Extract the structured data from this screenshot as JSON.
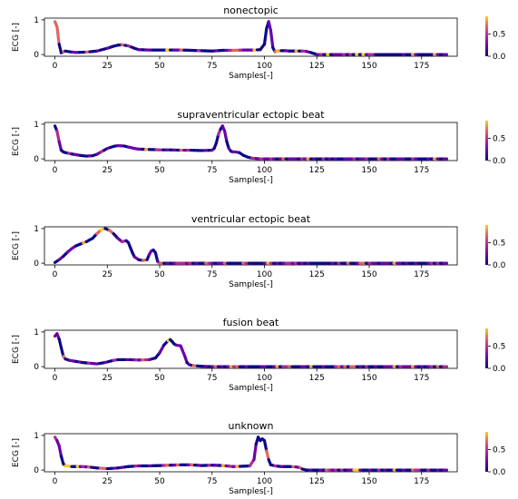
{
  "chart_data": [
    {
      "type": "line",
      "title": "nonectopic",
      "xlabel": "Samples[-]",
      "ylabel": "ECG [-]",
      "xlim": [
        -5,
        192
      ],
      "ylim": [
        -0.05,
        1.05
      ],
      "xticks": [
        0,
        25,
        50,
        75,
        100,
        125,
        150,
        175
      ],
      "yticks": [
        0,
        1
      ],
      "colorbar": {
        "ticks": [
          0.0,
          0.5
        ],
        "tick_labels": [
          "0.0",
          "0.5"
        ],
        "range": [
          0,
          0.9
        ],
        "colormap": "plasma"
      },
      "series": [
        {
          "x": [
            0,
            1,
            2,
            3,
            4,
            5,
            7,
            10,
            15,
            20,
            25,
            28,
            30,
            32,
            35,
            38,
            40,
            45,
            50,
            55,
            60,
            65,
            70,
            75,
            80,
            85,
            90,
            95,
            98,
            100,
            101,
            102,
            103,
            104,
            105,
            106,
            108,
            110,
            112,
            115,
            118,
            120,
            122,
            124,
            125,
            130,
            150,
            175,
            187
          ],
          "y": [
            0.95,
            0.8,
            0.3,
            0.05,
            0.08,
            0.1,
            0.08,
            0.06,
            0.07,
            0.1,
            0.18,
            0.24,
            0.27,
            0.28,
            0.25,
            0.18,
            0.14,
            0.13,
            0.13,
            0.13,
            0.13,
            0.12,
            0.11,
            0.1,
            0.12,
            0.12,
            0.13,
            0.13,
            0.14,
            0.3,
            0.75,
            0.95,
            0.7,
            0.2,
            0.08,
            0.1,
            0.11,
            0.11,
            0.1,
            0.1,
            0.1,
            0.09,
            0.06,
            0.02,
            0.0,
            0.0,
            0.0,
            0.0,
            0.0
          ]
        }
      ]
    },
    {
      "type": "line",
      "title": "supraventricular ectopic beat",
      "xlabel": "Samples[-]",
      "ylabel": "ECG [-]",
      "xlim": [
        -5,
        192
      ],
      "ylim": [
        -0.05,
        1.05
      ],
      "xticks": [
        0,
        25,
        50,
        75,
        100,
        125,
        150,
        175
      ],
      "yticks": [
        0,
        1
      ],
      "colorbar": {
        "ticks": [
          0.0,
          0.5
        ],
        "tick_labels": [
          "0.0",
          "0.5"
        ],
        "range": [
          0,
          0.9
        ],
        "colormap": "plasma"
      },
      "series": [
        {
          "x": [
            0,
            1,
            2,
            3,
            4,
            5,
            8,
            12,
            15,
            18,
            20,
            22,
            25,
            28,
            30,
            33,
            35,
            38,
            40,
            45,
            50,
            55,
            60,
            65,
            70,
            75,
            76,
            77,
            78,
            79,
            80,
            81,
            82,
            83,
            84,
            85,
            86,
            88,
            90,
            92,
            94,
            96,
            98,
            100,
            125,
            150,
            175,
            187
          ],
          "y": [
            0.95,
            0.8,
            0.5,
            0.25,
            0.2,
            0.18,
            0.14,
            0.1,
            0.08,
            0.09,
            0.13,
            0.2,
            0.3,
            0.36,
            0.38,
            0.37,
            0.34,
            0.3,
            0.28,
            0.27,
            0.26,
            0.26,
            0.25,
            0.25,
            0.24,
            0.25,
            0.3,
            0.45,
            0.7,
            0.85,
            0.95,
            0.8,
            0.5,
            0.3,
            0.22,
            0.2,
            0.2,
            0.18,
            0.1,
            0.05,
            0.02,
            0.01,
            0.0,
            0.0,
            0.0,
            0.0,
            0.0,
            0.0
          ]
        }
      ]
    },
    {
      "type": "line",
      "title": "ventricular ectopic beat",
      "xlabel": "Samples[-]",
      "ylabel": "ECG [-]",
      "xlim": [
        -5,
        192
      ],
      "ylim": [
        -0.05,
        1.05
      ],
      "xticks": [
        0,
        25,
        50,
        75,
        100,
        125,
        150,
        175
      ],
      "yticks": [
        0,
        1
      ],
      "colorbar": {
        "ticks": [
          0.0,
          0.5
        ],
        "tick_labels": [
          "0.0",
          "0.5"
        ],
        "range": [
          0,
          0.9
        ],
        "colormap": "plasma"
      },
      "series": [
        {
          "x": [
            0,
            2,
            4,
            6,
            8,
            10,
            12,
            15,
            18,
            20,
            22,
            24,
            26,
            28,
            30,
            32,
            34,
            35,
            36,
            37,
            38,
            40,
            42,
            44,
            45,
            46,
            47,
            48,
            49,
            50,
            52,
            75,
            100,
            125,
            150,
            175,
            187
          ],
          "y": [
            0.02,
            0.1,
            0.2,
            0.32,
            0.42,
            0.5,
            0.55,
            0.62,
            0.72,
            0.85,
            0.96,
            1.0,
            0.95,
            0.85,
            0.72,
            0.62,
            0.65,
            0.6,
            0.45,
            0.3,
            0.18,
            0.1,
            0.08,
            0.1,
            0.25,
            0.35,
            0.38,
            0.3,
            0.05,
            0.0,
            0.0,
            0.0,
            0.0,
            0.0,
            0.0,
            0.0,
            0.0
          ]
        }
      ]
    },
    {
      "type": "line",
      "title": "fusion beat",
      "xlabel": "Samples[-]",
      "ylabel": "ECG [-]",
      "xlim": [
        -5,
        192
      ],
      "ylim": [
        -0.05,
        1.05
      ],
      "xticks": [
        0,
        25,
        50,
        75,
        100,
        125,
        150,
        175
      ],
      "yticks": [
        0,
        1
      ],
      "colorbar": {
        "ticks": [
          0.0,
          0.5
        ],
        "tick_labels": [
          "0.0",
          "0.5"
        ],
        "range": [
          0,
          0.9
        ],
        "colormap": "plasma"
      },
      "series": [
        {
          "x": [
            0,
            1,
            2,
            3,
            4,
            5,
            7,
            10,
            13,
            16,
            20,
            24,
            28,
            30,
            33,
            36,
            40,
            45,
            48,
            50,
            52,
            54,
            55,
            56,
            57,
            58,
            60,
            62,
            63,
            64,
            65,
            66,
            68,
            70,
            75,
            100,
            125,
            150,
            175,
            187
          ],
          "y": [
            0.88,
            0.95,
            0.8,
            0.55,
            0.3,
            0.22,
            0.18,
            0.15,
            0.12,
            0.1,
            0.08,
            0.12,
            0.18,
            0.2,
            0.2,
            0.2,
            0.19,
            0.2,
            0.25,
            0.4,
            0.62,
            0.75,
            0.78,
            0.72,
            0.65,
            0.62,
            0.6,
            0.3,
            0.12,
            0.06,
            0.04,
            0.03,
            0.02,
            0.01,
            0.0,
            0.0,
            0.0,
            0.0,
            0.0,
            0.0
          ]
        }
      ]
    },
    {
      "type": "line",
      "title": "unknown",
      "xlabel": "Samples[-]",
      "ylabel": "ECG [-]",
      "xlim": [
        -5,
        192
      ],
      "ylim": [
        -0.05,
        1.05
      ],
      "xticks": [
        0,
        25,
        50,
        75,
        100,
        125,
        150,
        175
      ],
      "yticks": [
        0,
        1
      ],
      "colorbar": {
        "ticks": [
          0.0,
          0.5
        ],
        "tick_labels": [
          "0.0",
          "0.5"
        ],
        "range": [
          0,
          0.9
        ],
        "colormap": "plasma"
      },
      "series": [
        {
          "x": [
            0,
            1,
            2,
            3,
            4,
            5,
            8,
            12,
            16,
            20,
            25,
            30,
            35,
            40,
            45,
            50,
            55,
            60,
            65,
            70,
            75,
            80,
            85,
            90,
            93,
            95,
            96,
            97,
            98,
            99,
            100,
            101,
            102,
            103,
            105,
            108,
            112,
            115,
            117,
            118,
            120,
            125,
            150,
            175,
            187
          ],
          "y": [
            0.95,
            0.85,
            0.7,
            0.4,
            0.18,
            0.12,
            0.1,
            0.1,
            0.09,
            0.06,
            0.04,
            0.06,
            0.1,
            0.12,
            0.12,
            0.13,
            0.14,
            0.15,
            0.15,
            0.13,
            0.14,
            0.13,
            0.1,
            0.11,
            0.12,
            0.3,
            0.75,
            0.95,
            0.85,
            0.9,
            0.85,
            0.55,
            0.3,
            0.15,
            0.12,
            0.1,
            0.1,
            0.09,
            0.07,
            0.03,
            0.0,
            0.0,
            0.0,
            0.0,
            0.0
          ]
        }
      ]
    }
  ]
}
